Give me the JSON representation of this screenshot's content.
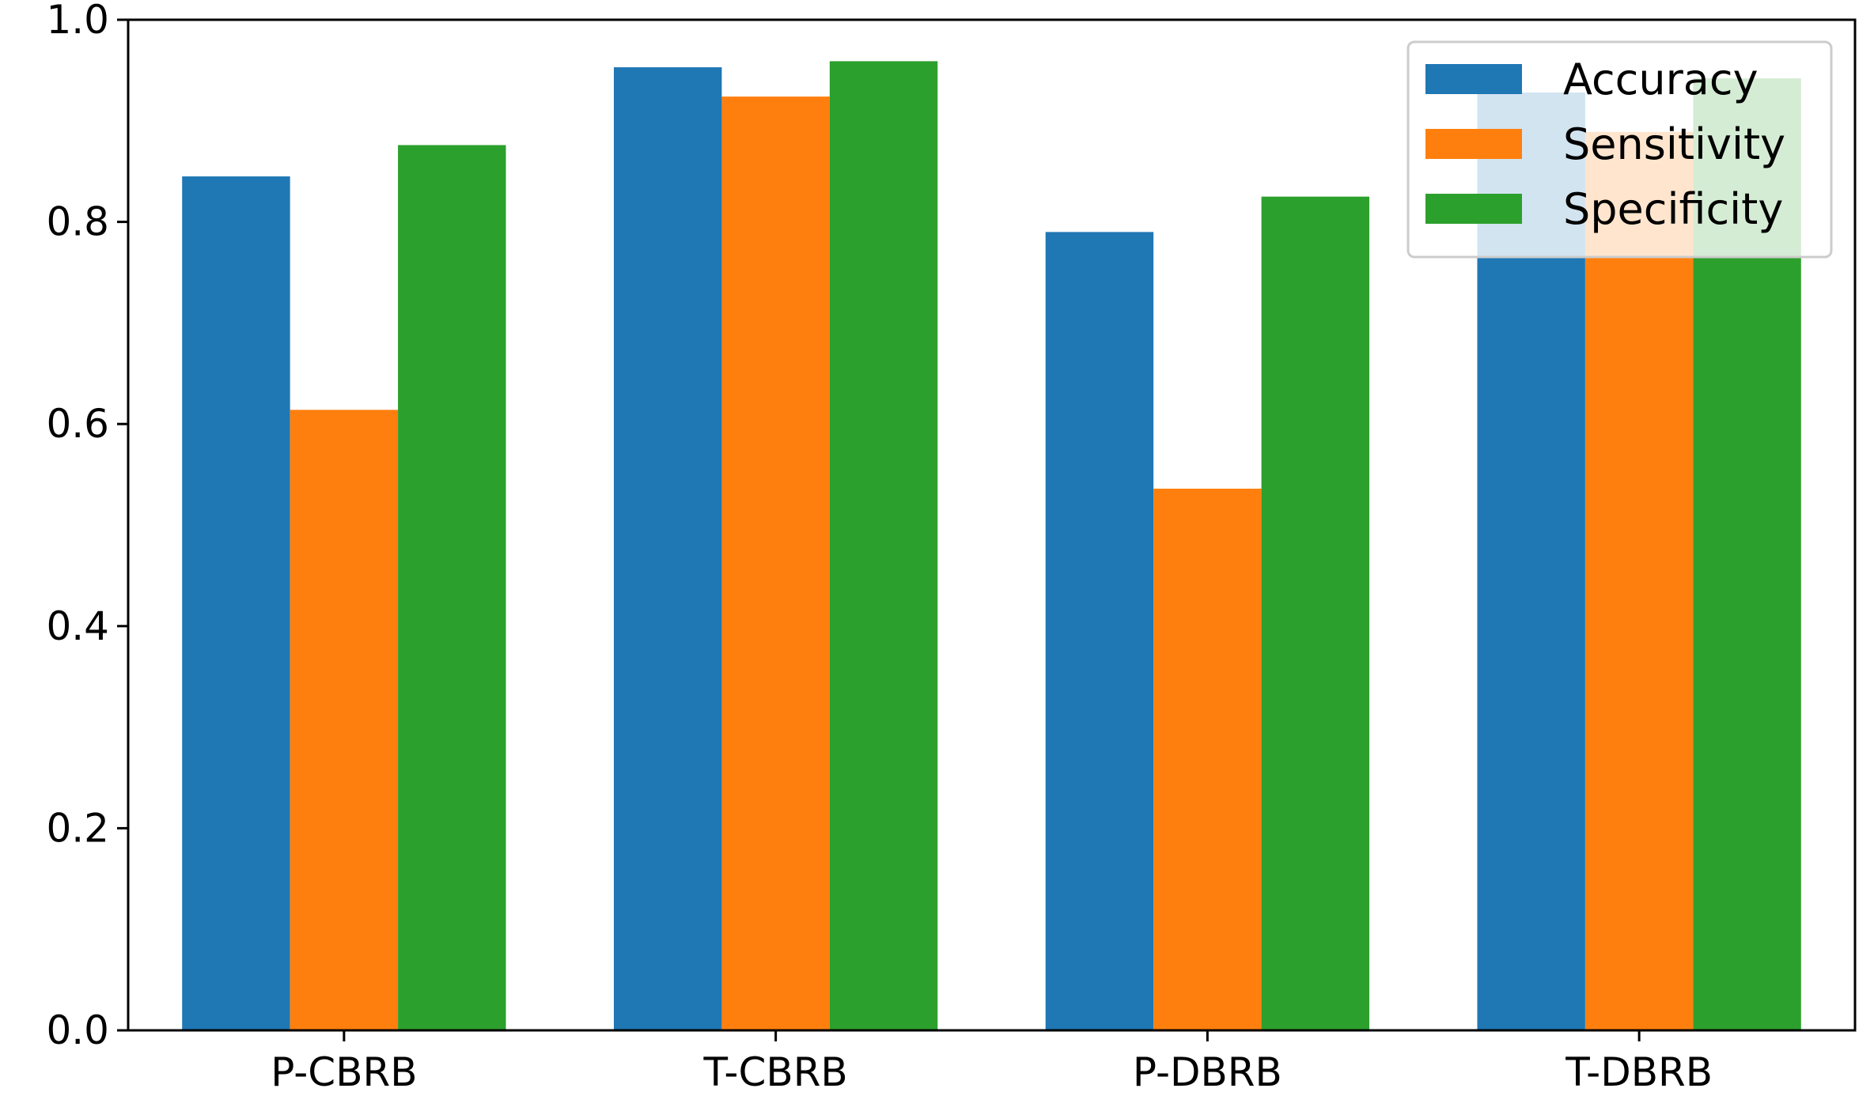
{
  "chart_data": {
    "type": "bar",
    "title": "",
    "xlabel": "",
    "ylabel": "",
    "categories": [
      "P-CBRB",
      "T-CBRB",
      "P-DBRB",
      "T-DBRB"
    ],
    "series": [
      {
        "name": "Accuracy",
        "color": "#1f77b4",
        "values": [
          0.845,
          0.953,
          0.79,
          0.928
        ]
      },
      {
        "name": "Sensitivity",
        "color": "#ff7f0e",
        "values": [
          0.614,
          0.924,
          0.536,
          0.889
        ]
      },
      {
        "name": "Specificity",
        "color": "#2ca02c",
        "values": [
          0.876,
          0.959,
          0.825,
          0.942
        ]
      }
    ],
    "ylim": [
      0.0,
      1.0
    ],
    "yticks": [
      "0.0",
      "0.2",
      "0.4",
      "0.6",
      "0.8",
      "1.0"
    ],
    "grid": false,
    "legend_position": "top-right"
  }
}
